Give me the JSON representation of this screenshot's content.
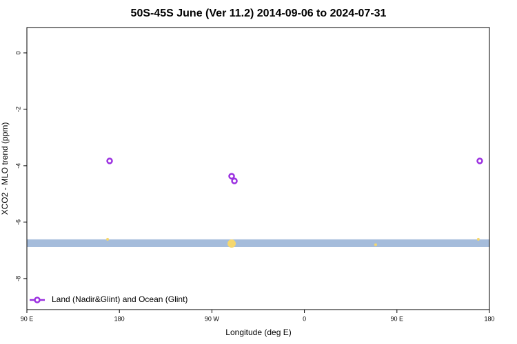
{
  "chart_data": {
    "type": "scatter",
    "title": "50S-45S June (Ver 11.2)   2014-09-06 to 2024-07-31",
    "xlabel": "Longitude (deg E)",
    "ylabel": "XCO2 - MLO trend (ppm)",
    "xlim": [
      90,
      540
    ],
    "xticks": [
      {
        "value": 90,
        "label": "90 E"
      },
      180,
      {
        "value": 270,
        "label": "90 W"
      },
      {
        "value": 360,
        "label": "0"
      },
      {
        "value": 450,
        "label": "90 E"
      },
      {
        "value": 540,
        "label": "180"
      }
    ],
    "ylim": [
      -9.1,
      0.9
    ],
    "yticks": [
      0,
      -2,
      -4,
      -6,
      -8
    ],
    "band": {
      "color": "#a5bcdb",
      "values": [
        -6.88,
        -6.61
      ]
    },
    "highlights": {
      "color": "#f5d76e",
      "x": [
        168.5,
        289.2,
        429.3,
        529.2
      ],
      "values": [
        -6.61,
        -6.76,
        -6.8,
        -6.61
      ]
    },
    "series": [
      {
        "name": "Land (Nadir&Glint) and Ocean (Glint)",
        "color": "#9b30e0",
        "x": [
          170.5,
          289.2,
          291.9,
          530.6
        ],
        "values": [
          -3.83,
          -4.37,
          -4.54,
          -3.83
        ]
      }
    ],
    "legend": "bottom-left"
  }
}
